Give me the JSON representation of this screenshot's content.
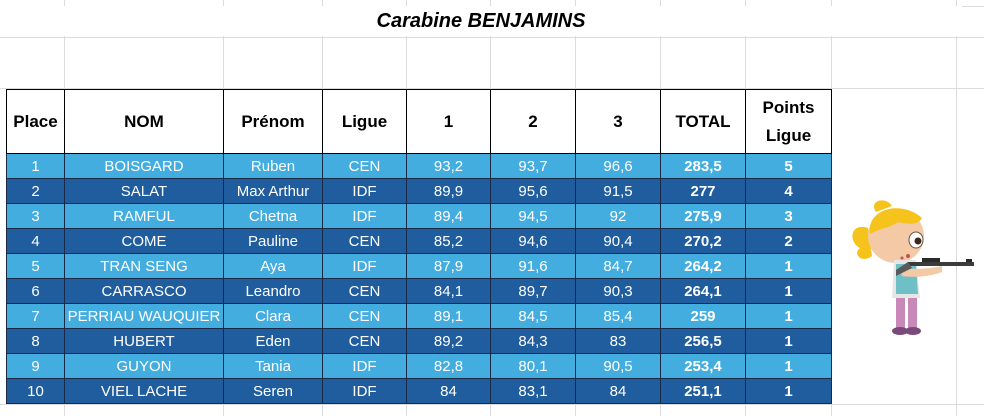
{
  "title": "Carabine BENJAMINS",
  "headers": {
    "place": "Place",
    "nom": "NOM",
    "prenom": "Prénom",
    "ligue": "Ligue",
    "s1": "1",
    "s2": "2",
    "s3": "3",
    "total": "TOTAL",
    "points_line1": "Points",
    "points_line2": "Ligue"
  },
  "rows": [
    {
      "place": "1",
      "nom": "BOISGARD",
      "prenom": "Ruben",
      "ligue": "CEN",
      "s1": "93,2",
      "s2": "93,7",
      "s3": "96,6",
      "total": "283,5",
      "points": "5"
    },
    {
      "place": "2",
      "nom": "SALAT",
      "prenom": "Max Arthur",
      "ligue": "IDF",
      "s1": "89,9",
      "s2": "95,6",
      "s3": "91,5",
      "total": "277",
      "points": "4"
    },
    {
      "place": "3",
      "nom": "RAMFUL",
      "prenom": "Chetna",
      "ligue": "IDF",
      "s1": "89,4",
      "s2": "94,5",
      "s3": "92",
      "total": "275,9",
      "points": "3"
    },
    {
      "place": "4",
      "nom": "COME",
      "prenom": "Pauline",
      "ligue": "CEN",
      "s1": "85,2",
      "s2": "94,6",
      "s3": "90,4",
      "total": "270,2",
      "points": "2"
    },
    {
      "place": "5",
      "nom": "TRAN SENG",
      "prenom": "Aya",
      "ligue": "IDF",
      "s1": "87,9",
      "s2": "91,6",
      "s3": "84,7",
      "total": "264,2",
      "points": "1"
    },
    {
      "place": "6",
      "nom": "CARRASCO",
      "prenom": "Leandro",
      "ligue": "CEN",
      "s1": "84,1",
      "s2": "89,7",
      "s3": "90,3",
      "total": "264,1",
      "points": "1"
    },
    {
      "place": "7",
      "nom": "PERRIAU WAUQUIER",
      "prenom": "Clara",
      "ligue": "CEN",
      "s1": "89,1",
      "s2": "84,5",
      "s3": "85,4",
      "total": "259",
      "points": "1"
    },
    {
      "place": "8",
      "nom": "HUBERT",
      "prenom": "Eden",
      "ligue": "CEN",
      "s1": "89,2",
      "s2": "84,3",
      "s3": "83",
      "total": "256,5",
      "points": "1"
    },
    {
      "place": "9",
      "nom": "GUYON",
      "prenom": "Tania",
      "ligue": "IDF",
      "s1": "82,8",
      "s2": "80,1",
      "s3": "90,5",
      "total": "253,4",
      "points": "1"
    },
    {
      "place": "10",
      "nom": "VIEL LACHE",
      "prenom": "Seren",
      "ligue": "IDF",
      "s1": "84",
      "s2": "83,1",
      "s3": "84",
      "total": "251,1",
      "points": "1"
    }
  ],
  "colors": {
    "row_light": "#43ade0",
    "row_dark": "#1f5d9e",
    "text_on_rows": "#ffffff"
  },
  "illustration": "cartoon-girl-shooting-rifle"
}
